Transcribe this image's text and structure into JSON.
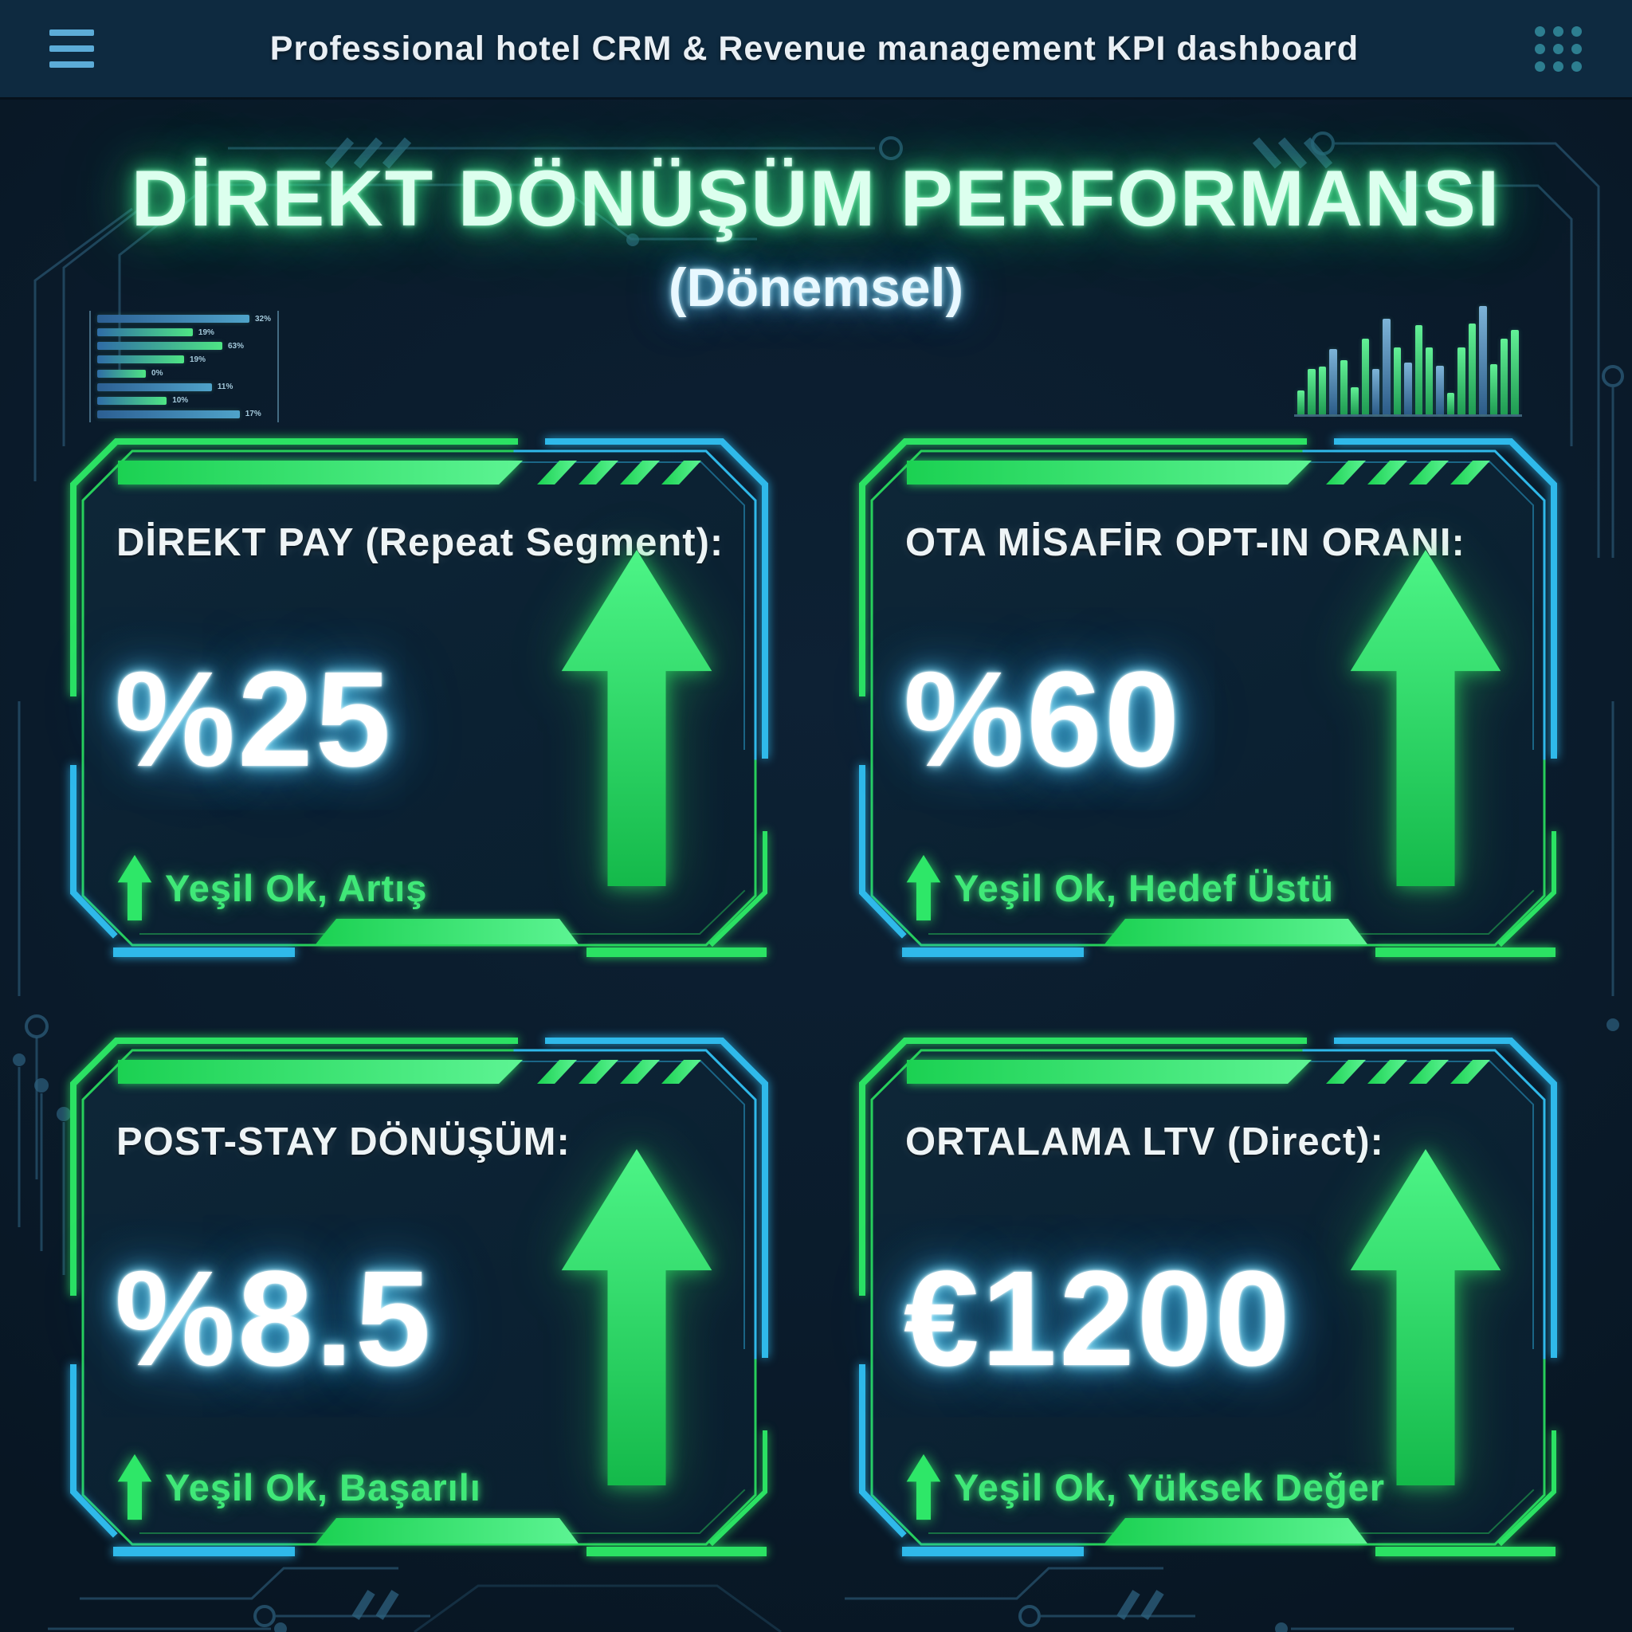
{
  "header": {
    "title": "Professional hotel CRM & Revenue management KPI dashboard"
  },
  "hero": {
    "title": "DİREKT DÖNÜŞÜM PERFORMANSI",
    "subtitle": "(Dönemsel)"
  },
  "kpi_cards": [
    {
      "title": "DİREKT PAY (Repeat Segment):",
      "value": "%25",
      "note": "Yeşil Ok, Artış"
    },
    {
      "title": "OTA MİSAFİR OPT-IN ORANI:",
      "value": "%60",
      "note": "Yeşil Ok, Hedef Üstü"
    },
    {
      "title": "POST-STAY DÖNÜŞÜM:",
      "value": "%8.5",
      "note": "Yeşil Ok, Başarılı"
    },
    {
      "title": "ORTALAMA LTV (Direct):",
      "value": "€1200",
      "note": "Yeşil Ok, Yüksek Değer"
    }
  ],
  "decor_charts": {
    "left_bars": {
      "type": "bar",
      "orientation": "horizontal",
      "rows": [
        {
          "label": "32%",
          "length_pct": 95,
          "color": "blue"
        },
        {
          "label": "19%",
          "length_pct": 55,
          "color": "green"
        },
        {
          "label": "63%",
          "length_pct": 72,
          "color": "green"
        },
        {
          "label": "19%",
          "length_pct": 50,
          "color": "green"
        },
        {
          "label": "0%",
          "length_pct": 28,
          "color": "green"
        },
        {
          "label": "11%",
          "length_pct": 66,
          "color": "blue"
        },
        {
          "label": "10%",
          "length_pct": 40,
          "color": "green"
        },
        {
          "label": "17%",
          "length_pct": 82,
          "color": "blue"
        }
      ]
    },
    "right_bars": {
      "type": "bar",
      "orientation": "vertical",
      "bars": [
        {
          "height_pct": 22,
          "color": "g"
        },
        {
          "height_pct": 42,
          "color": "g"
        },
        {
          "height_pct": 44,
          "color": "g"
        },
        {
          "height_pct": 60,
          "color": "b"
        },
        {
          "height_pct": 50,
          "color": "g"
        },
        {
          "height_pct": 25,
          "color": "g"
        },
        {
          "height_pct": 70,
          "color": "g"
        },
        {
          "height_pct": 42,
          "color": "b"
        },
        {
          "height_pct": 88,
          "color": "b"
        },
        {
          "height_pct": 62,
          "color": "g"
        },
        {
          "height_pct": 48,
          "color": "b"
        },
        {
          "height_pct": 82,
          "color": "g"
        },
        {
          "height_pct": 62,
          "color": "g"
        },
        {
          "height_pct": 45,
          "color": "b"
        },
        {
          "height_pct": 20,
          "color": "g"
        },
        {
          "height_pct": 62,
          "color": "g"
        },
        {
          "height_pct": 84,
          "color": "g"
        },
        {
          "height_pct": 100,
          "color": "b"
        },
        {
          "height_pct": 46,
          "color": "g"
        },
        {
          "height_pct": 70,
          "color": "g"
        },
        {
          "height_pct": 78,
          "color": "g"
        }
      ]
    }
  },
  "colors": {
    "accent_green": "#2ee563",
    "accent_cyan": "#2fb9ea",
    "value_glow": "#55d9ff",
    "title_glow": "#3df08c",
    "background": "#0a1b2b",
    "header_bg": "#0e2a40",
    "card_bg": "#0c2334",
    "circuit": "#2e617f"
  }
}
